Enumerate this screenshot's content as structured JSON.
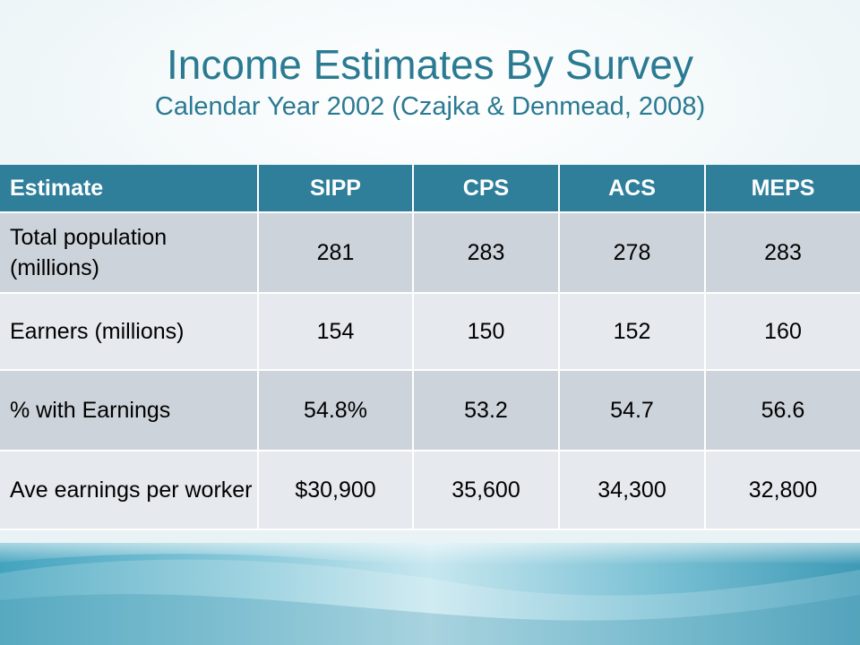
{
  "slide": {
    "title": "Income Estimates By Survey",
    "subtitle": "Calendar Year 2002 (Czajka & Denmead, 2008)",
    "colors": {
      "title": "#2a7a92",
      "header_bg": "#2f7f9b",
      "row_dark": "#cdd3da",
      "row_light": "#e6e9ed"
    }
  },
  "table": {
    "headers": [
      "Estimate",
      "SIPP",
      "CPS",
      "ACS",
      "MEPS"
    ],
    "rows": [
      {
        "label": "Total population (millions)",
        "values": [
          "281",
          "283",
          "278",
          "283"
        ]
      },
      {
        "label": "Earners (millions)",
        "values": [
          "154",
          "150",
          "152",
          "160"
        ]
      },
      {
        "label": "% with Earnings",
        "values": [
          "54.8%",
          "53.2",
          "54.7",
          "56.6"
        ]
      },
      {
        "label": "Ave earnings per worker",
        "values": [
          "$30,900",
          "35,600",
          "34,300",
          "32,800"
        ]
      }
    ]
  }
}
